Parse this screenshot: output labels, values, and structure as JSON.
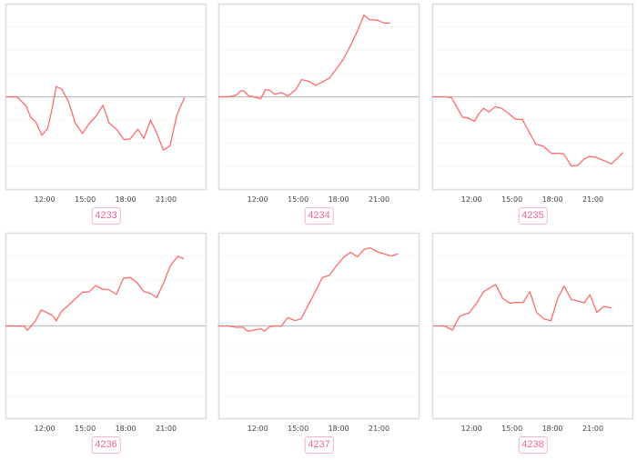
{
  "chart_data": [
    {
      "type": "line",
      "id": "4233",
      "label": "4233",
      "xlim": [
        "09:05",
        "24:00"
      ],
      "ylim": [
        -4,
        4
      ],
      "grid": true,
      "xticks": [
        "12:00",
        "15:00",
        "18:00",
        "21:00"
      ],
      "color": "#ff6b6b",
      "points": [
        [
          "09:07",
          0
        ],
        [
          "09:56",
          0
        ],
        [
          "10:37",
          -0.39
        ],
        [
          "10:57",
          -0.88
        ],
        [
          "11:21",
          -1.1
        ],
        [
          "11:47",
          -1.65
        ],
        [
          "12:13",
          -1.35
        ],
        [
          "12:31",
          -0.58
        ],
        [
          "12:51",
          0.44
        ],
        [
          "13:15",
          0.34
        ],
        [
          "13:45",
          -0.19
        ],
        [
          "14:16",
          -1.13
        ],
        [
          "14:48",
          -1.57
        ],
        [
          "15:16",
          -1.17
        ],
        [
          "15:50",
          -0.81
        ],
        [
          "16:19",
          -0.36
        ],
        [
          "16:46",
          -1.12
        ],
        [
          "17:20",
          -1.4
        ],
        [
          "17:53",
          -1.84
        ],
        [
          "18:20",
          -1.81
        ],
        [
          "18:54",
          -1.39
        ],
        [
          "19:21",
          -1.79
        ],
        [
          "19:51",
          -1.0
        ],
        [
          "20:18",
          -1.56
        ],
        [
          "20:48",
          -2.29
        ],
        [
          "21:17",
          -2.1
        ],
        [
          "21:48",
          -0.78
        ],
        [
          "22:22",
          -0.03
        ]
      ]
    },
    {
      "type": "line",
      "id": "4234",
      "label": "4234",
      "xlim": [
        "09:05",
        "24:00"
      ],
      "ylim": [
        -4,
        4
      ],
      "grid": true,
      "xticks": [
        "12:00",
        "15:00",
        "18:00",
        "21:00"
      ],
      "color": "#ff6b6b",
      "points": [
        [
          "09:05",
          0
        ],
        [
          "09:52",
          0
        ],
        [
          "10:26",
          0.08
        ],
        [
          "10:43",
          0.25
        ],
        [
          "10:59",
          0.25
        ],
        [
          "11:20",
          0.04
        ],
        [
          "11:47",
          -0.01
        ],
        [
          "12:13",
          -0.09
        ],
        [
          "12:34",
          0.31
        ],
        [
          "12:51",
          0.29
        ],
        [
          "13:17",
          0.1
        ],
        [
          "13:44",
          0.19
        ],
        [
          "14:14",
          0.04
        ],
        [
          "14:48",
          0.29
        ],
        [
          "15:15",
          0.74
        ],
        [
          "15:49",
          0.66
        ],
        [
          "16:18",
          0.49
        ],
        [
          "16:49",
          0.64
        ],
        [
          "17:20",
          0.81
        ],
        [
          "17:50",
          1.19
        ],
        [
          "18:21",
          1.62
        ],
        [
          "18:50",
          2.14
        ],
        [
          "19:24",
          2.82
        ],
        [
          "19:53",
          3.51
        ],
        [
          "20:18",
          3.31
        ],
        [
          "20:52",
          3.29
        ],
        [
          "21:22",
          3.17
        ],
        [
          "21:49",
          3.16
        ]
      ]
    },
    {
      "type": "line",
      "id": "4235",
      "label": "4235",
      "xlim": [
        "09:05",
        "24:00"
      ],
      "ylim": [
        -4,
        4
      ],
      "grid": true,
      "xticks": [
        "12:00",
        "15:00",
        "18:00",
        "21:00"
      ],
      "color": "#ff6b6b",
      "points": [
        [
          "09:05",
          0
        ],
        [
          "10:06",
          0
        ],
        [
          "10:32",
          -0.05
        ],
        [
          "10:55",
          -0.45
        ],
        [
          "11:20",
          -0.87
        ],
        [
          "11:44",
          -0.91
        ],
        [
          "12:13",
          -1.05
        ],
        [
          "12:31",
          -0.74
        ],
        [
          "12:54",
          -0.49
        ],
        [
          "13:17",
          -0.65
        ],
        [
          "13:45",
          -0.43
        ],
        [
          "14:14",
          -0.49
        ],
        [
          "14:48",
          -0.74
        ],
        [
          "15:16",
          -0.96
        ],
        [
          "15:46",
          -0.97
        ],
        [
          "16:16",
          -1.51
        ],
        [
          "16:47",
          -2.04
        ],
        [
          "17:19",
          -2.12
        ],
        [
          "17:56",
          -2.43
        ],
        [
          "18:21",
          -2.42
        ],
        [
          "18:50",
          -2.45
        ],
        [
          "19:24",
          -2.97
        ],
        [
          "19:53",
          -2.94
        ],
        [
          "20:20",
          -2.68
        ],
        [
          "20:44",
          -2.56
        ],
        [
          "21:15",
          -2.6
        ],
        [
          "21:52",
          -2.75
        ],
        [
          "22:23",
          -2.88
        ],
        [
          "23:15",
          -2.39
        ]
      ]
    },
    {
      "type": "line",
      "id": "4236",
      "label": "4236",
      "xlim": [
        "09:05",
        "24:00"
      ],
      "ylim": [
        -4,
        4
      ],
      "grid": true,
      "xticks": [
        "12:00",
        "15:00",
        "18:00",
        "21:00"
      ],
      "color": "#ff6b6b",
      "points": [
        [
          "09:05",
          0
        ],
        [
          "10:29",
          -0.01
        ],
        [
          "10:42",
          -0.19
        ],
        [
          "11:17",
          0.19
        ],
        [
          "11:44",
          0.69
        ],
        [
          "12:07",
          0.58
        ],
        [
          "12:34",
          0.45
        ],
        [
          "12:51",
          0.22
        ],
        [
          "13:14",
          0.62
        ],
        [
          "13:45",
          0.88
        ],
        [
          "14:17",
          1.17
        ],
        [
          "14:48",
          1.45
        ],
        [
          "15:15",
          1.45
        ],
        [
          "15:46",
          1.73
        ],
        [
          "16:16",
          1.58
        ],
        [
          "16:43",
          1.56
        ],
        [
          "17:19",
          1.36
        ],
        [
          "17:50",
          2.04
        ],
        [
          "18:19",
          2.08
        ],
        [
          "18:50",
          1.86
        ],
        [
          "19:21",
          1.48
        ],
        [
          "19:51",
          1.39
        ],
        [
          "20:18",
          1.21
        ],
        [
          "20:49",
          1.84
        ],
        [
          "21:18",
          2.57
        ],
        [
          "21:52",
          2.99
        ],
        [
          "22:19",
          2.88
        ]
      ]
    },
    {
      "type": "line",
      "id": "4237",
      "label": "4237",
      "xlim": [
        "09:05",
        "24:00"
      ],
      "ylim": [
        -4,
        4
      ],
      "grid": true,
      "xticks": [
        "12:00",
        "15:00",
        "18:00",
        "21:00"
      ],
      "color": "#ff6b6b",
      "points": [
        [
          "09:02",
          0
        ],
        [
          "09:47",
          0
        ],
        [
          "10:23",
          -0.06
        ],
        [
          "10:55",
          -0.06
        ],
        [
          "11:15",
          -0.23
        ],
        [
          "11:42",
          -0.18
        ],
        [
          "12:12",
          -0.12
        ],
        [
          "12:30",
          -0.22
        ],
        [
          "12:54",
          -0.03
        ],
        [
          "13:17",
          0
        ],
        [
          "13:44",
          -0.01
        ],
        [
          "14:14",
          0.36
        ],
        [
          "14:46",
          0.23
        ],
        [
          "15:13",
          0.3
        ],
        [
          "15:47",
          0.94
        ],
        [
          "16:17",
          1.49
        ],
        [
          "16:48",
          2.08
        ],
        [
          "17:19",
          2.17
        ],
        [
          "17:52",
          2.6
        ],
        [
          "18:23",
          2.95
        ],
        [
          "18:53",
          3.16
        ],
        [
          "19:24",
          2.97
        ],
        [
          "19:54",
          3.29
        ],
        [
          "20:21",
          3.35
        ],
        [
          "20:52",
          3.18
        ],
        [
          "21:23",
          3.09
        ],
        [
          "21:53",
          3.0
        ],
        [
          "22:25",
          3.09
        ]
      ]
    },
    {
      "type": "line",
      "id": "4238",
      "label": "4238",
      "xlim": [
        "09:05",
        "24:00"
      ],
      "ylim": [
        -4,
        4
      ],
      "grid": true,
      "xticks": [
        "12:00",
        "15:00",
        "18:00",
        "21:00"
      ],
      "color": "#ff6b6b",
      "points": [
        [
          "09:10",
          0
        ],
        [
          "09:59",
          0
        ],
        [
          "10:35",
          -0.18
        ],
        [
          "11:06",
          0.4
        ],
        [
          "11:27",
          0.49
        ],
        [
          "11:50",
          0.56
        ],
        [
          "12:20",
          0.95
        ],
        [
          "12:54",
          1.47
        ],
        [
          "13:18",
          1.61
        ],
        [
          "13:47",
          1.78
        ],
        [
          "14:18",
          1.19
        ],
        [
          "14:50",
          0.97
        ],
        [
          "15:21",
          1.01
        ],
        [
          "15:50",
          1.01
        ],
        [
          "16:19",
          1.47
        ],
        [
          "16:49",
          0.58
        ],
        [
          "17:22",
          0.3
        ],
        [
          "17:53",
          0.22
        ],
        [
          "18:23",
          1.17
        ],
        [
          "18:52",
          1.71
        ],
        [
          "19:23",
          1.14
        ],
        [
          "19:54",
          1.06
        ],
        [
          "20:21",
          0.99
        ],
        [
          "20:47",
          1.34
        ],
        [
          "21:17",
          0.58
        ],
        [
          "21:50",
          0.84
        ],
        [
          "22:24",
          0.77
        ]
      ]
    }
  ]
}
